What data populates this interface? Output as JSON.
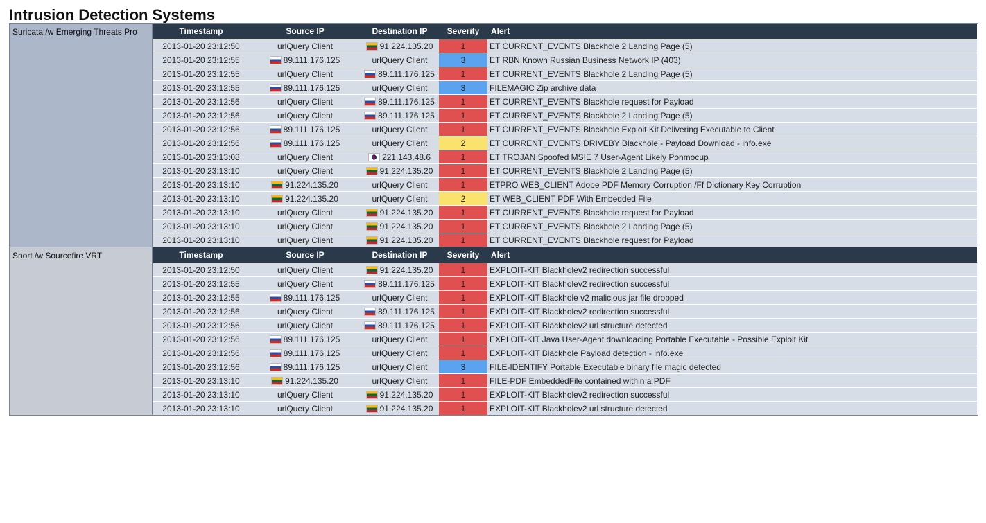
{
  "header": {
    "title": "Intrusion Detection Systems"
  },
  "columns": [
    "Timestamp",
    "Source IP",
    "Destination IP",
    "Severity",
    "Alert"
  ],
  "sections": [
    {
      "name": "Suricata /w Emerging Threats Pro",
      "rows": [
        [
          "2013-01-20 23:12:50",
          "urlQuery Client",
          {
            "ip": "91.224.135.20",
            "flag": "lt"
          },
          1,
          "ET CURRENT_EVENTS Blackhole 2 Landing Page (5)"
        ],
        [
          "2013-01-20 23:12:55",
          {
            "ip": "89.111.176.125",
            "flag": "ru"
          },
          "urlQuery Client",
          3,
          "ET RBN Known Russian Business Network IP (403)"
        ],
        [
          "2013-01-20 23:12:55",
          "urlQuery Client",
          {
            "ip": "89.111.176.125",
            "flag": "ru"
          },
          1,
          "ET CURRENT_EVENTS Blackhole 2 Landing Page (5)"
        ],
        [
          "2013-01-20 23:12:55",
          {
            "ip": "89.111.176.125",
            "flag": "ru"
          },
          "urlQuery Client",
          3,
          "FILEMAGIC Zip archive data"
        ],
        [
          "2013-01-20 23:12:56",
          "urlQuery Client",
          {
            "ip": "89.111.176.125",
            "flag": "ru"
          },
          1,
          "ET CURRENT_EVENTS Blackhole request for Payload"
        ],
        [
          "2013-01-20 23:12:56",
          "urlQuery Client",
          {
            "ip": "89.111.176.125",
            "flag": "ru"
          },
          1,
          "ET CURRENT_EVENTS Blackhole 2 Landing Page (5)"
        ],
        [
          "2013-01-20 23:12:56",
          {
            "ip": "89.111.176.125",
            "flag": "ru"
          },
          "urlQuery Client",
          1,
          "ET CURRENT_EVENTS Blackhole Exploit Kit Delivering Executable to Client"
        ],
        [
          "2013-01-20 23:12:56",
          {
            "ip": "89.111.176.125",
            "flag": "ru"
          },
          "urlQuery Client",
          2,
          "ET CURRENT_EVENTS DRIVEBY Blackhole - Payload Download - info.exe"
        ],
        [
          "2013-01-20 23:13:08",
          "urlQuery Client",
          {
            "ip": "221.143.48.6",
            "flag": "kr"
          },
          1,
          "ET TROJAN Spoofed MSIE 7 User-Agent Likely Ponmocup"
        ],
        [
          "2013-01-20 23:13:10",
          "urlQuery Client",
          {
            "ip": "91.224.135.20",
            "flag": "lt"
          },
          1,
          "ET CURRENT_EVENTS Blackhole 2 Landing Page (5)"
        ],
        [
          "2013-01-20 23:13:10",
          {
            "ip": "91.224.135.20",
            "flag": "lt"
          },
          "urlQuery Client",
          1,
          "ETPRO WEB_CLIENT Adobe PDF Memory Corruption /Ff Dictionary Key Corruption"
        ],
        [
          "2013-01-20 23:13:10",
          {
            "ip": "91.224.135.20",
            "flag": "lt"
          },
          "urlQuery Client",
          2,
          "ET WEB_CLIENT PDF With Embedded File"
        ],
        [
          "2013-01-20 23:13:10",
          "urlQuery Client",
          {
            "ip": "91.224.135.20",
            "flag": "lt"
          },
          1,
          "ET CURRENT_EVENTS Blackhole request for Payload"
        ],
        [
          "2013-01-20 23:13:10",
          "urlQuery Client",
          {
            "ip": "91.224.135.20",
            "flag": "lt"
          },
          1,
          "ET CURRENT_EVENTS Blackhole 2 Landing Page (5)"
        ],
        [
          "2013-01-20 23:13:10",
          "urlQuery Client",
          {
            "ip": "91.224.135.20",
            "flag": "lt"
          },
          1,
          "ET CURRENT_EVENTS Blackhole request for Payload"
        ]
      ]
    },
    {
      "name": "Snort /w Sourcefire VRT",
      "rows": [
        [
          "2013-01-20 23:12:50",
          "urlQuery Client",
          {
            "ip": "91.224.135.20",
            "flag": "lt"
          },
          1,
          "EXPLOIT-KIT Blackholev2 redirection successful"
        ],
        [
          "2013-01-20 23:12:55",
          "urlQuery Client",
          {
            "ip": "89.111.176.125",
            "flag": "ru"
          },
          1,
          "EXPLOIT-KIT Blackholev2 redirection successful"
        ],
        [
          "2013-01-20 23:12:55",
          {
            "ip": "89.111.176.125",
            "flag": "ru"
          },
          "urlQuery Client",
          1,
          "EXPLOIT-KIT Blackhole v2 malicious jar file dropped"
        ],
        [
          "2013-01-20 23:12:56",
          "urlQuery Client",
          {
            "ip": "89.111.176.125",
            "flag": "ru"
          },
          1,
          "EXPLOIT-KIT Blackholev2 redirection successful"
        ],
        [
          "2013-01-20 23:12:56",
          "urlQuery Client",
          {
            "ip": "89.111.176.125",
            "flag": "ru"
          },
          1,
          "EXPLOIT-KIT Blackholev2 url structure detected"
        ],
        [
          "2013-01-20 23:12:56",
          {
            "ip": "89.111.176.125",
            "flag": "ru"
          },
          "urlQuery Client",
          1,
          "EXPLOIT-KIT Java User-Agent downloading Portable Executable - Possible Exploit Kit"
        ],
        [
          "2013-01-20 23:12:56",
          {
            "ip": "89.111.176.125",
            "flag": "ru"
          },
          "urlQuery Client",
          1,
          "EXPLOIT-KIT Blackhole Payload detection - info.exe"
        ],
        [
          "2013-01-20 23:12:56",
          {
            "ip": "89.111.176.125",
            "flag": "ru"
          },
          "urlQuery Client",
          3,
          "FILE-IDENTIFY Portable Executable binary file magic detected"
        ],
        [
          "2013-01-20 23:13:10",
          {
            "ip": "91.224.135.20",
            "flag": "lt"
          },
          "urlQuery Client",
          1,
          "FILE-PDF EmbeddedFile contained within a PDF"
        ],
        [
          "2013-01-20 23:13:10",
          "urlQuery Client",
          {
            "ip": "91.224.135.20",
            "flag": "lt"
          },
          1,
          "EXPLOIT-KIT Blackholev2 redirection successful"
        ],
        [
          "2013-01-20 23:13:10",
          "urlQuery Client",
          {
            "ip": "91.224.135.20",
            "flag": "lt"
          },
          1,
          "EXPLOIT-KIT Blackholev2 url structure detected"
        ]
      ]
    }
  ]
}
